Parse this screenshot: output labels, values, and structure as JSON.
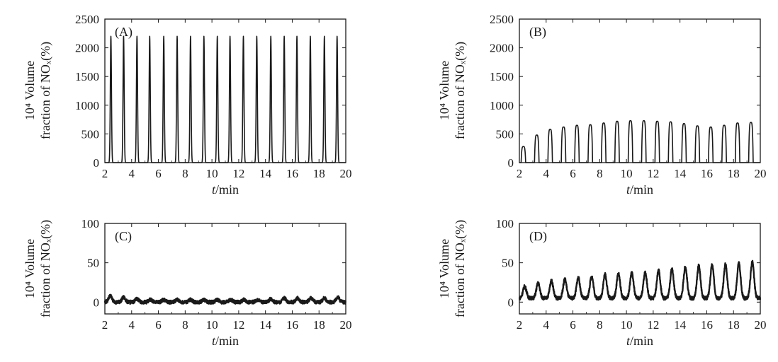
{
  "chart_data": [
    {
      "type": "line",
      "panel_label": "(A)",
      "xlabel": "t/min",
      "ylabel_line1": "10⁴ Volume",
      "ylabel_line2": "fraction of NOₓ(%)",
      "xlim": [
        2,
        20
      ],
      "ylim": [
        0,
        2500
      ],
      "xticks": [
        "2",
        "4",
        "6",
        "8",
        "10",
        "12",
        "14",
        "16",
        "18",
        "20"
      ],
      "yticks": [
        "0",
        "500",
        "1000",
        "1500",
        "2000",
        "2500"
      ],
      "peak_times": [
        2.45,
        3.4,
        4.4,
        5.35,
        6.4,
        7.4,
        8.4,
        9.4,
        10.4,
        11.35,
        12.35,
        13.35,
        14.4,
        15.4,
        16.35,
        17.35,
        18.4,
        19.35
      ],
      "peak_values": [
        2200,
        2200,
        2200,
        2200,
        2200,
        2200,
        2200,
        2200,
        2200,
        2200,
        2200,
        2200,
        2200,
        2200,
        2200,
        2200,
        2200,
        2200
      ],
      "baseline": 0
    },
    {
      "type": "line",
      "panel_label": "(B)",
      "xlabel": "t/min",
      "ylabel_line1": "10⁴ Volume",
      "ylabel_line2": "fraction of NOₓ(%)",
      "xlim": [
        2,
        20
      ],
      "ylim": [
        0,
        2500
      ],
      "xticks": [
        "2",
        "4",
        "6",
        "8",
        "10",
        "12",
        "14",
        "16",
        "18",
        "20"
      ],
      "yticks": [
        "0",
        "500",
        "1000",
        "1500",
        "2000",
        "2500"
      ],
      "peak_times": [
        2.3,
        3.3,
        4.3,
        5.3,
        6.3,
        7.3,
        8.3,
        9.3,
        10.3,
        11.3,
        12.3,
        13.3,
        14.3,
        15.3,
        16.3,
        17.3,
        18.3,
        19.3
      ],
      "peak_values": [
        280,
        480,
        580,
        620,
        650,
        660,
        690,
        720,
        730,
        730,
        720,
        710,
        680,
        640,
        620,
        650,
        690,
        700
      ],
      "baseline": 0
    },
    {
      "type": "line",
      "panel_label": "(C)",
      "xlabel": "t/min",
      "ylabel_line1": "10⁴ Volume",
      "ylabel_line2": "fraction of NOₓ(%)",
      "xlim": [
        2,
        20
      ],
      "ylim": [
        -15,
        100
      ],
      "xticks": [
        "2",
        "4",
        "6",
        "8",
        "10",
        "12",
        "14",
        "16",
        "18",
        "20"
      ],
      "yticks": [
        "0",
        "50",
        "100"
      ],
      "peak_times": [
        2.4,
        3.4,
        4.4,
        5.4,
        6.4,
        7.4,
        8.4,
        9.4,
        10.4,
        11.4,
        12.4,
        13.4,
        14.4,
        15.4,
        16.4,
        17.4,
        18.4,
        19.4
      ],
      "peak_values": [
        8,
        6,
        4,
        3,
        3,
        3,
        3,
        3,
        3,
        3,
        3,
        3,
        4,
        5,
        5,
        5,
        5,
        6
      ],
      "baseline": 0
    },
    {
      "type": "line",
      "panel_label": "(D)",
      "xlabel": "t/min",
      "ylabel_line1": "10⁴ Volume",
      "ylabel_line2": "fraction of NOₓ(%)",
      "xlim": [
        2,
        20
      ],
      "ylim": [
        -15,
        100
      ],
      "xticks": [
        "2",
        "4",
        "6",
        "8",
        "10",
        "12",
        "14",
        "16",
        "18",
        "20"
      ],
      "yticks": [
        "0",
        "50",
        "100"
      ],
      "peak_times": [
        2.4,
        3.4,
        4.4,
        5.4,
        6.4,
        7.4,
        8.4,
        9.4,
        10.4,
        11.4,
        12.4,
        13.4,
        14.4,
        15.4,
        16.4,
        17.4,
        18.4,
        19.4
      ],
      "peak_values": [
        20,
        24,
        27,
        29,
        31,
        33,
        35,
        36,
        37,
        38,
        40,
        42,
        45,
        46,
        47,
        48,
        49,
        51
      ],
      "baseline": 5
    }
  ]
}
